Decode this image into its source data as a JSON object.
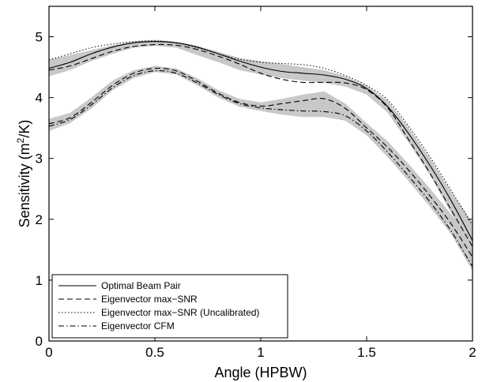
{
  "chart_data": {
    "type": "line",
    "xlabel": "Angle (HPBW)",
    "ylabel_main": "Sensitivity (m",
    "ylabel_sup": "2",
    "ylabel_end": "/K)",
    "xlim": [
      0,
      2
    ],
    "ylim": [
      0,
      5.5
    ],
    "xticks": [
      "0",
      "0.5",
      "1",
      "1.5",
      "2"
    ],
    "xtick_values": [
      0,
      0.5,
      1,
      1.5,
      2
    ],
    "yticks": [
      "0",
      "1",
      "2",
      "3",
      "4",
      "5"
    ],
    "ytick_values": [
      0,
      1,
      2,
      3,
      4,
      5
    ],
    "grid": false,
    "legend_position": "bottom-left",
    "band_color": "#c8c8c8",
    "line_color": "#000000",
    "bands": [
      {
        "x": [
          0,
          0.1,
          0.2,
          0.3,
          0.4,
          0.5,
          0.6,
          0.7,
          0.8,
          0.9,
          1.0,
          1.1,
          1.2,
          1.3,
          1.4,
          1.5,
          1.6,
          1.7,
          1.8,
          1.9,
          2.0
        ],
        "lower": [
          4.35,
          4.45,
          4.6,
          4.72,
          4.82,
          4.85,
          4.82,
          4.7,
          4.58,
          4.45,
          4.38,
          4.32,
          4.28,
          4.24,
          4.18,
          4.05,
          3.75,
          3.25,
          2.72,
          2.1,
          1.45
        ],
        "upper": [
          4.62,
          4.7,
          4.78,
          4.86,
          4.92,
          4.95,
          4.92,
          4.85,
          4.75,
          4.65,
          4.6,
          4.55,
          4.5,
          4.45,
          4.35,
          4.2,
          3.95,
          3.5,
          3.0,
          2.45,
          1.95
        ]
      },
      {
        "x": [
          0,
          0.1,
          0.2,
          0.3,
          0.4,
          0.5,
          0.6,
          0.7,
          0.8,
          0.9,
          1.0,
          1.1,
          1.2,
          1.3,
          1.4,
          1.5,
          1.6,
          1.7,
          1.8,
          1.9,
          2.0
        ],
        "lower": [
          3.45,
          3.58,
          3.82,
          4.12,
          4.32,
          4.42,
          4.38,
          4.2,
          4.0,
          3.85,
          3.78,
          3.72,
          3.68,
          3.68,
          3.62,
          3.38,
          3.02,
          2.62,
          2.2,
          1.75,
          1.15
        ],
        "upper": [
          3.65,
          3.75,
          4.0,
          4.28,
          4.45,
          4.52,
          4.48,
          4.32,
          4.12,
          3.98,
          3.92,
          3.98,
          4.05,
          4.1,
          3.9,
          3.58,
          3.28,
          2.9,
          2.5,
          2.08,
          1.6
        ]
      }
    ],
    "series": [
      {
        "name": "Optimal Beam Pair",
        "style": "solid",
        "x": [
          0,
          0.1,
          0.2,
          0.3,
          0.4,
          0.5,
          0.6,
          0.7,
          0.8,
          0.9,
          1.0,
          1.1,
          1.2,
          1.3,
          1.4,
          1.5,
          1.6,
          1.7,
          1.8,
          1.9,
          2.0
        ],
        "y": [
          4.48,
          4.58,
          4.72,
          4.83,
          4.9,
          4.92,
          4.9,
          4.83,
          4.72,
          4.6,
          4.5,
          4.43,
          4.4,
          4.37,
          4.3,
          4.15,
          3.85,
          3.4,
          2.88,
          2.3,
          1.65
        ]
      },
      {
        "name": "Eigenvector max−SNR",
        "style": "dashed",
        "x": [
          0,
          0.1,
          0.2,
          0.3,
          0.4,
          0.5,
          0.6,
          0.7,
          0.8,
          0.9,
          1.0,
          1.1,
          1.2,
          1.3,
          1.4,
          1.5,
          1.6,
          1.7,
          1.8,
          1.9,
          2.0
        ],
        "y": [
          4.45,
          4.52,
          4.64,
          4.76,
          4.84,
          4.87,
          4.86,
          4.79,
          4.68,
          4.55,
          4.4,
          4.3,
          4.25,
          4.25,
          4.24,
          4.13,
          3.83,
          3.3,
          2.75,
          2.15,
          1.55
        ]
      },
      {
        "name": "Eigenvector max−SNR (Uncalibrated)",
        "style": "dotted",
        "x": [
          0,
          0.1,
          0.2,
          0.3,
          0.4,
          0.5,
          0.6,
          0.7,
          0.8,
          0.9,
          1.0,
          1.1,
          1.2,
          1.3,
          1.4,
          1.5,
          1.6,
          1.7,
          1.8,
          1.9,
          2.0
        ],
        "y": [
          4.62,
          4.72,
          4.82,
          4.88,
          4.92,
          4.93,
          4.9,
          4.82,
          4.72,
          4.63,
          4.58,
          4.56,
          4.54,
          4.48,
          4.36,
          4.2,
          3.96,
          3.52,
          3.02,
          2.47,
          1.9
        ]
      },
      {
        "name": "Eigenvector CFM",
        "style": "dashdot",
        "x": [
          0,
          0.1,
          0.2,
          0.3,
          0.4,
          0.5,
          0.6,
          0.7,
          0.8,
          0.9,
          1.0,
          1.1,
          1.2,
          1.3,
          1.4,
          1.5,
          1.6,
          1.7,
          1.8,
          1.9,
          2.0
        ],
        "y": [
          3.53,
          3.64,
          3.88,
          4.16,
          4.36,
          4.44,
          4.4,
          4.24,
          4.05,
          3.9,
          3.83,
          3.8,
          3.78,
          3.77,
          3.7,
          3.45,
          3.1,
          2.7,
          2.28,
          1.8,
          1.22
        ]
      },
      {
        "name": "",
        "style": "dashed",
        "x": [
          0,
          0.1,
          0.2,
          0.3,
          0.4,
          0.5,
          0.6,
          0.7,
          0.8,
          0.9,
          1.0,
          1.1,
          1.2,
          1.3,
          1.4,
          1.5,
          1.6,
          1.7,
          1.8,
          1.9,
          2.0
        ],
        "y": [
          3.57,
          3.67,
          3.92,
          4.2,
          4.4,
          4.48,
          4.44,
          4.27,
          4.07,
          3.92,
          3.86,
          3.9,
          3.95,
          3.98,
          3.82,
          3.5,
          3.18,
          2.8,
          2.38,
          1.92,
          1.38
        ]
      }
    ]
  }
}
